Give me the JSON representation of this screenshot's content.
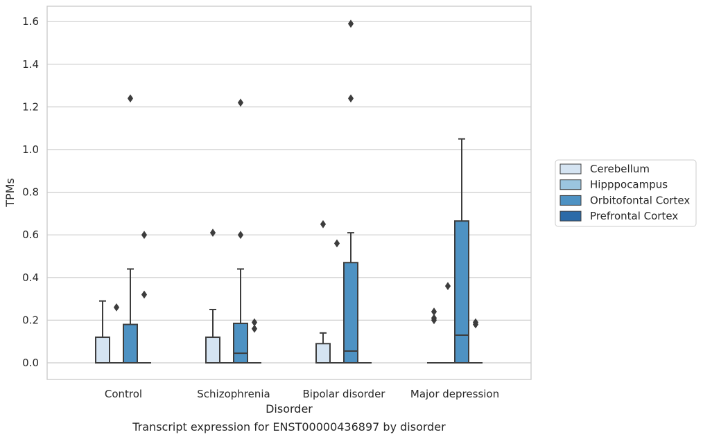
{
  "caption": "Transcript expression for ENST00000436897 by disorder",
  "chart_data": {
    "type": "box",
    "xlabel": "Disorder",
    "ylabel": "TPMs",
    "ylim": [
      -0.08,
      1.67
    ],
    "yticks": [
      0.0,
      0.2,
      0.4,
      0.6,
      0.8,
      1.0,
      1.2,
      1.4,
      1.6
    ],
    "ytick_labels": [
      "0.0",
      "0.2",
      "0.4",
      "0.6",
      "0.8",
      "1.0",
      "1.2",
      "1.4",
      "1.6"
    ],
    "grid": "horizontal",
    "legend_position": "right, outside plot",
    "categories": [
      "Control",
      "Schizophrenia",
      "Bipolar disorder",
      "Major depression"
    ],
    "series": [
      {
        "name": "Cerebellum",
        "color": "#d5e4f2",
        "boxes": [
          {
            "q1": 0,
            "median": 0,
            "q3": 0.12,
            "whisker_low": 0,
            "whisker_high": 0.29,
            "outliers": []
          },
          {
            "q1": 0,
            "median": 0,
            "q3": 0.12,
            "whisker_low": 0,
            "whisker_high": 0.25,
            "outliers": [
              0.61
            ]
          },
          {
            "q1": 0,
            "median": 0,
            "q3": 0.09,
            "whisker_low": 0,
            "whisker_high": 0.14,
            "outliers": [
              0.65
            ]
          },
          {
            "q1": 0,
            "median": 0,
            "q3": 0,
            "whisker_low": 0,
            "whisker_high": 0,
            "outliers": [
              0.2,
              0.21,
              0.24
            ]
          }
        ]
      },
      {
        "name": "Hipppocampus",
        "color": "#9bc5df",
        "boxes": [
          {
            "q1": 0,
            "median": 0,
            "q3": 0,
            "whisker_low": 0,
            "whisker_high": 0,
            "outliers": [
              0.26
            ]
          },
          {
            "q1": 0,
            "median": 0,
            "q3": 0,
            "whisker_low": 0,
            "whisker_high": 0,
            "outliers": []
          },
          {
            "q1": 0,
            "median": 0,
            "q3": 0,
            "whisker_low": 0,
            "whisker_high": 0,
            "outliers": [
              0.56
            ]
          },
          {
            "q1": 0,
            "median": 0,
            "q3": 0,
            "whisker_low": 0,
            "whisker_high": 0,
            "outliers": [
              0.36
            ]
          }
        ]
      },
      {
        "name": "Orbitofontal Cortex",
        "color": "#4e92c3",
        "boxes": [
          {
            "q1": 0,
            "median": 0,
            "q3": 0.18,
            "whisker_low": 0,
            "whisker_high": 0.44,
            "outliers": [
              1.24
            ]
          },
          {
            "q1": 0,
            "median": 0.045,
            "q3": 0.185,
            "whisker_low": 0,
            "whisker_high": 0.44,
            "outliers": [
              0.6,
              1.22
            ]
          },
          {
            "q1": 0,
            "median": 0.055,
            "q3": 0.47,
            "whisker_low": 0,
            "whisker_high": 0.61,
            "outliers": [
              1.24,
              1.59
            ]
          },
          {
            "q1": 0,
            "median": 0.13,
            "q3": 0.665,
            "whisker_low": 0,
            "whisker_high": 1.05,
            "outliers": []
          }
        ]
      },
      {
        "name": "Prefrontal Cortex",
        "color": "#2b6aa8",
        "boxes": [
          {
            "q1": 0,
            "median": 0,
            "q3": 0,
            "whisker_low": 0,
            "whisker_high": 0,
            "outliers": [
              0.32,
              0.6
            ]
          },
          {
            "q1": 0,
            "median": 0,
            "q3": 0,
            "whisker_low": 0,
            "whisker_high": 0,
            "outliers": [
              0.16,
              0.19
            ]
          },
          {
            "q1": 0,
            "median": 0,
            "q3": 0,
            "whisker_low": 0,
            "whisker_high": 0,
            "outliers": []
          },
          {
            "q1": 0,
            "median": 0,
            "q3": 0,
            "whisker_low": 0,
            "whisker_high": 0,
            "outliers": [
              0.18,
              0.19
            ]
          }
        ]
      }
    ]
  }
}
